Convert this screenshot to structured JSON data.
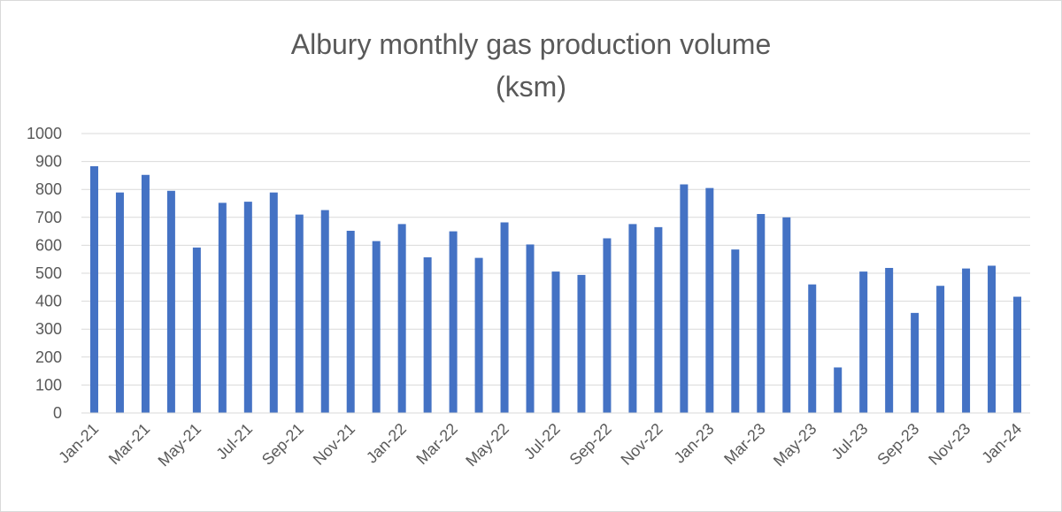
{
  "chart_data": {
    "type": "bar",
    "title_lines": [
      "Albury monthly gas production volume",
      "(ksm)"
    ],
    "categories": [
      "Jan-21",
      "Feb-21",
      "Mar-21",
      "Apr-21",
      "May-21",
      "Jun-21",
      "Jul-21",
      "Aug-21",
      "Sep-21",
      "Oct-21",
      "Nov-21",
      "Dec-21",
      "Jan-22",
      "Feb-22",
      "Mar-22",
      "Apr-22",
      "May-22",
      "Jun-22",
      "Jul-22",
      "Aug-22",
      "Sep-22",
      "Oct-22",
      "Nov-22",
      "Dec-22",
      "Jan-23",
      "Feb-23",
      "Mar-23",
      "Apr-23",
      "May-23",
      "Jun-23",
      "Jul-23",
      "Aug-23",
      "Sep-23",
      "Oct-23",
      "Nov-23",
      "Dec-23",
      "Jan-24"
    ],
    "values": [
      883,
      789,
      852,
      795,
      592,
      752,
      756,
      789,
      710,
      726,
      652,
      615,
      676,
      557,
      650,
      555,
      682,
      603,
      506,
      494,
      625,
      676,
      665,
      818,
      805,
      585,
      712,
      700,
      460,
      163,
      506,
      519,
      358,
      455,
      517,
      527,
      416
    ],
    "ylim": [
      0,
      1000
    ],
    "yticks": [
      0,
      100,
      200,
      300,
      400,
      500,
      600,
      700,
      800,
      900,
      1000
    ],
    "xticks_shown": [
      "Jan-21",
      "Mar-21",
      "May-21",
      "Jul-21",
      "Sep-21",
      "Nov-21",
      "Jan-22",
      "Mar-22",
      "May-22",
      "Jul-22",
      "Sep-22",
      "Nov-22",
      "Jan-23",
      "Mar-23",
      "May-23",
      "Jul-23",
      "Sep-23",
      "Nov-23",
      "Jan-24"
    ],
    "bar_color": "#4472C4",
    "grid": true,
    "legend": "none"
  }
}
